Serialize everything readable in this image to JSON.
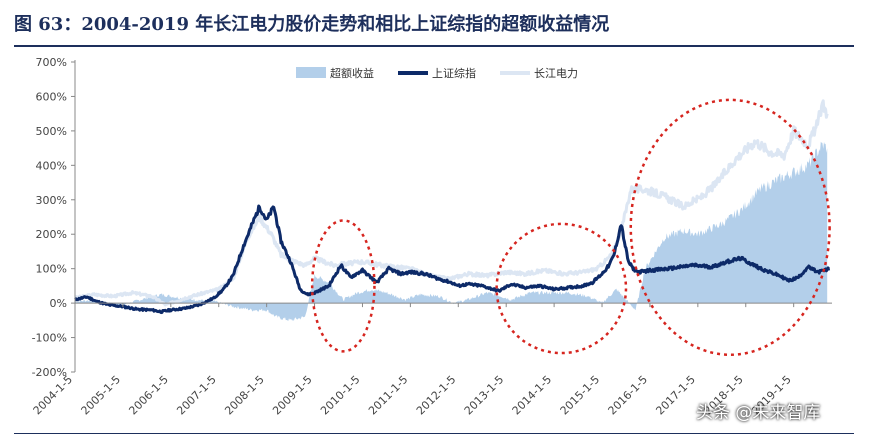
{
  "title": "图 63：2004-2019 年长江电力股价走势和相比上证综指的超额收益情况",
  "watermark": "头条 @未来智库",
  "colors": {
    "excess": "#b3cfea",
    "sse": "#0d2a68",
    "yangtze": "#dce6f3",
    "circle": "#d6251f",
    "axis": "#888888",
    "tick_text": "#444444"
  },
  "chart_data": {
    "type": "area",
    "y_unit": "%",
    "ylim": [
      -200,
      700
    ],
    "y_ticks": [
      -200,
      -100,
      0,
      100,
      200,
      300,
      400,
      500,
      600,
      700
    ],
    "y_tick_labels": [
      "-200%",
      "-100%",
      "0%",
      "100%",
      "200%",
      "300%",
      "400%",
      "500%",
      "600%",
      "700%"
    ],
    "xlim": [
      2004.0,
      2019.8
    ],
    "x_ticks": [
      2004,
      2005,
      2006,
      2007,
      2008,
      2009,
      2010,
      2011,
      2012,
      2013,
      2014,
      2015,
      2016,
      2017,
      2018,
      2019
    ],
    "x_tick_labels": [
      "2004-1-5",
      "2005-1-5",
      "2006-1-5",
      "2007-1-5",
      "2008-1-5",
      "2009-1-5",
      "2010-1-5",
      "2011-1-5",
      "2012-1-5",
      "2013-1-5",
      "2014-1-5",
      "2015-1-5",
      "2016-1-5",
      "2017-1-5",
      "2018-1-5",
      "2019-1-5"
    ],
    "legend_position": "top",
    "grid": false,
    "series": [
      {
        "name": "超额收益",
        "kind": "area",
        "points": [
          [
            2004.0,
            5
          ],
          [
            2004.3,
            8
          ],
          [
            2004.6,
            3
          ],
          [
            2005.0,
            -5
          ],
          [
            2005.5,
            15
          ],
          [
            2005.8,
            25
          ],
          [
            2006.2,
            15
          ],
          [
            2006.5,
            10
          ],
          [
            2006.9,
            5
          ],
          [
            2007.3,
            -10
          ],
          [
            2007.7,
            -20
          ],
          [
            2008.0,
            -20
          ],
          [
            2008.2,
            -40
          ],
          [
            2008.5,
            -50
          ],
          [
            2008.8,
            -40
          ],
          [
            2009.0,
            80
          ],
          [
            2009.3,
            60
          ],
          [
            2009.6,
            10
          ],
          [
            2009.9,
            30
          ],
          [
            2010.2,
            40
          ],
          [
            2010.5,
            30
          ],
          [
            2010.9,
            10
          ],
          [
            2011.2,
            25
          ],
          [
            2011.6,
            20
          ],
          [
            2011.9,
            0
          ],
          [
            2012.2,
            10
          ],
          [
            2012.6,
            30
          ],
          [
            2012.9,
            20
          ],
          [
            2013.1,
            10
          ],
          [
            2013.5,
            30
          ],
          [
            2013.9,
            30
          ],
          [
            2014.3,
            30
          ],
          [
            2014.7,
            20
          ],
          [
            2015.0,
            0
          ],
          [
            2015.3,
            40
          ],
          [
            2015.5,
            10
          ],
          [
            2015.7,
            -20
          ],
          [
            2015.9,
            100
          ],
          [
            2016.3,
            190
          ],
          [
            2016.7,
            210
          ],
          [
            2017.0,
            200
          ],
          [
            2017.5,
            230
          ],
          [
            2017.9,
            270
          ],
          [
            2018.3,
            330
          ],
          [
            2018.7,
            360
          ],
          [
            2019.0,
            380
          ],
          [
            2019.3,
            400
          ],
          [
            2019.5,
            440
          ],
          [
            2019.6,
            460
          ],
          [
            2019.7,
            450
          ]
        ]
      },
      {
        "name": "上证综指",
        "kind": "line",
        "points": [
          [
            2004.0,
            10
          ],
          [
            2004.25,
            18
          ],
          [
            2004.45,
            5
          ],
          [
            2004.7,
            -5
          ],
          [
            2005.0,
            -10
          ],
          [
            2005.3,
            -18
          ],
          [
            2005.6,
            -20
          ],
          [
            2005.8,
            -25
          ],
          [
            2006.0,
            -20
          ],
          [
            2006.3,
            -15
          ],
          [
            2006.6,
            -5
          ],
          [
            2006.9,
            15
          ],
          [
            2007.1,
            40
          ],
          [
            2007.3,
            80
          ],
          [
            2007.5,
            160
          ],
          [
            2007.7,
            230
          ],
          [
            2007.85,
            280
          ],
          [
            2008.0,
            240
          ],
          [
            2008.15,
            280
          ],
          [
            2008.3,
            180
          ],
          [
            2008.5,
            120
          ],
          [
            2008.7,
            40
          ],
          [
            2008.85,
            25
          ],
          [
            2009.0,
            30
          ],
          [
            2009.3,
            50
          ],
          [
            2009.55,
            110
          ],
          [
            2009.75,
            75
          ],
          [
            2010.0,
            95
          ],
          [
            2010.3,
            60
          ],
          [
            2010.55,
            100
          ],
          [
            2010.8,
            85
          ],
          [
            2011.0,
            90
          ],
          [
            2011.3,
            85
          ],
          [
            2011.6,
            70
          ],
          [
            2011.85,
            60
          ],
          [
            2012.0,
            50
          ],
          [
            2012.2,
            55
          ],
          [
            2012.5,
            50
          ],
          [
            2012.85,
            35
          ],
          [
            2013.1,
            55
          ],
          [
            2013.4,
            45
          ],
          [
            2013.7,
            50
          ],
          [
            2014.0,
            40
          ],
          [
            2014.3,
            45
          ],
          [
            2014.6,
            50
          ],
          [
            2014.8,
            60
          ],
          [
            2015.0,
            85
          ],
          [
            2015.15,
            110
          ],
          [
            2015.25,
            140
          ],
          [
            2015.4,
            230
          ],
          [
            2015.45,
            190
          ],
          [
            2015.55,
            120
          ],
          [
            2015.65,
            100
          ],
          [
            2015.75,
            90
          ],
          [
            2016.0,
            95
          ],
          [
            2016.4,
            100
          ],
          [
            2016.9,
            110
          ],
          [
            2017.3,
            105
          ],
          [
            2017.6,
            120
          ],
          [
            2017.9,
            130
          ],
          [
            2018.1,
            115
          ],
          [
            2018.4,
            95
          ],
          [
            2018.7,
            80
          ],
          [
            2018.9,
            65
          ],
          [
            2019.1,
            75
          ],
          [
            2019.3,
            105
          ],
          [
            2019.5,
            90
          ],
          [
            2019.65,
            95
          ],
          [
            2019.75,
            100
          ]
        ]
      },
      {
        "name": "长江电力",
        "kind": "line",
        "points": [
          [
            2004.0,
            15
          ],
          [
            2004.4,
            25
          ],
          [
            2004.8,
            20
          ],
          [
            2005.2,
            30
          ],
          [
            2005.6,
            20
          ],
          [
            2005.9,
            -5
          ],
          [
            2006.3,
            15
          ],
          [
            2006.7,
            30
          ],
          [
            2007.0,
            40
          ],
          [
            2007.3,
            70
          ],
          [
            2007.6,
            190
          ],
          [
            2007.85,
            250
          ],
          [
            2008.1,
            200
          ],
          [
            2008.3,
            140
          ],
          [
            2008.6,
            120
          ],
          [
            2008.8,
            110
          ],
          [
            2009.0,
            130
          ],
          [
            2009.4,
            110
          ],
          [
            2009.7,
            115
          ],
          [
            2010.0,
            120
          ],
          [
            2010.4,
            110
          ],
          [
            2010.7,
            105
          ],
          [
            2011.0,
            100
          ],
          [
            2011.4,
            80
          ],
          [
            2011.8,
            70
          ],
          [
            2012.2,
            85
          ],
          [
            2012.6,
            80
          ],
          [
            2013.0,
            90
          ],
          [
            2013.4,
            85
          ],
          [
            2013.8,
            95
          ],
          [
            2014.2,
            85
          ],
          [
            2014.6,
            90
          ],
          [
            2014.9,
            100
          ],
          [
            2015.2,
            140
          ],
          [
            2015.4,
            210
          ],
          [
            2015.6,
            330
          ],
          [
            2015.9,
            330
          ],
          [
            2016.3,
            310
          ],
          [
            2016.7,
            280
          ],
          [
            2017.1,
            310
          ],
          [
            2017.4,
            350
          ],
          [
            2017.8,
            420
          ],
          [
            2018.2,
            470
          ],
          [
            2018.5,
            440
          ],
          [
            2018.8,
            430
          ],
          [
            2019.0,
            500
          ],
          [
            2019.3,
            460
          ],
          [
            2019.5,
            520
          ],
          [
            2019.6,
            580
          ],
          [
            2019.7,
            550
          ]
        ]
      }
    ],
    "annotations": [
      {
        "kind": "ellipse",
        "x_range": [
          2008.95,
          2010.25
        ],
        "y_range": [
          -140,
          240
        ]
      },
      {
        "kind": "ellipse",
        "x_range": [
          2012.8,
          2015.5
        ],
        "y_range": [
          -145,
          230
        ]
      },
      {
        "kind": "ellipse",
        "x_range": [
          2015.6,
          2019.75
        ],
        "y_range": [
          -150,
          590
        ]
      }
    ]
  }
}
